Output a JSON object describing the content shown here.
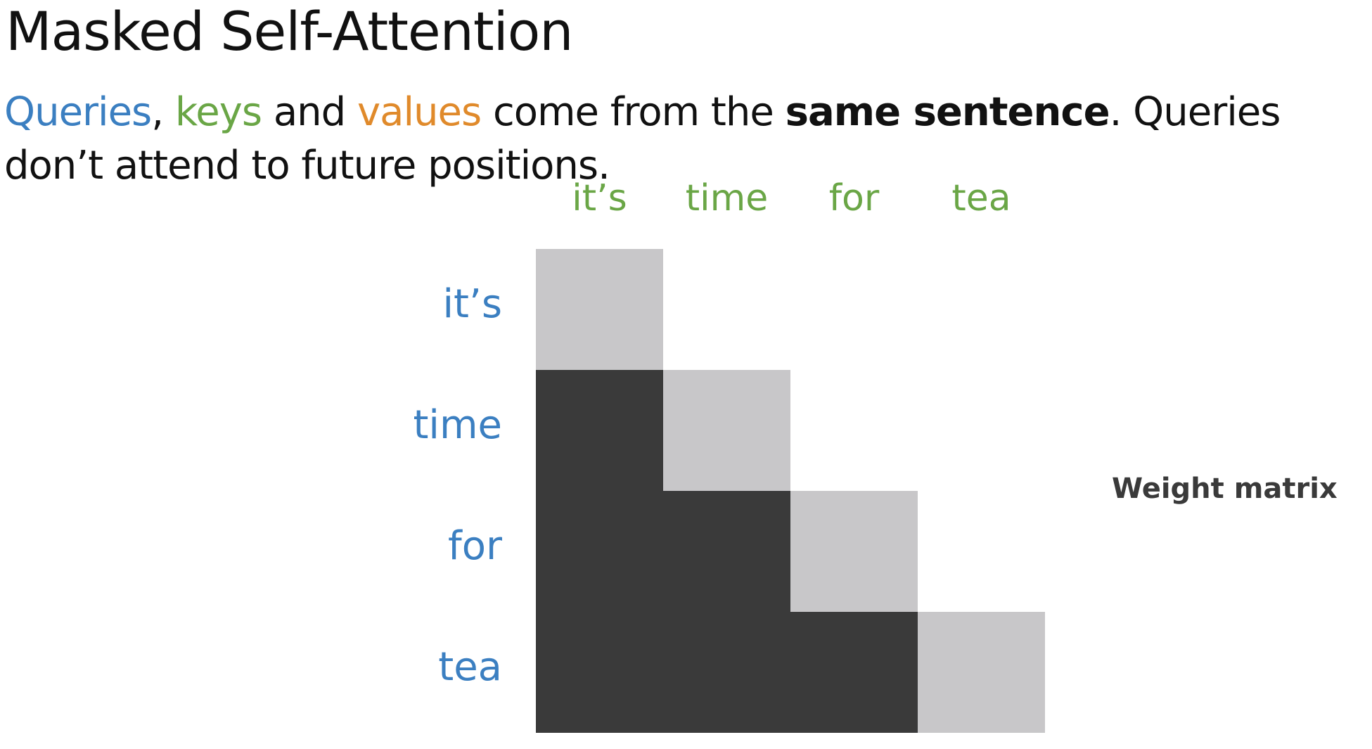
{
  "title": "Masked Self-Attention",
  "subtitle": {
    "queries": "Queries",
    "comma": ", ",
    "keys": "keys",
    "and": " and ",
    "values": "values",
    "come_from": " come from the ",
    "same_sentence": "same sentence",
    "rest": ". Queries don’t attend to future positions."
  },
  "key_tokens": [
    "it’s",
    "time",
    "for",
    "tea"
  ],
  "query_tokens": [
    "it’s",
    "time",
    "for",
    "tea"
  ],
  "matrix_label": "Weight matrix",
  "colors": {
    "queries": "#3b7fc1",
    "keys": "#6aa646",
    "values": "#e08a2b",
    "diagonal_cell": "#c8c7c9",
    "past_cell": "#3a3a3a"
  }
}
